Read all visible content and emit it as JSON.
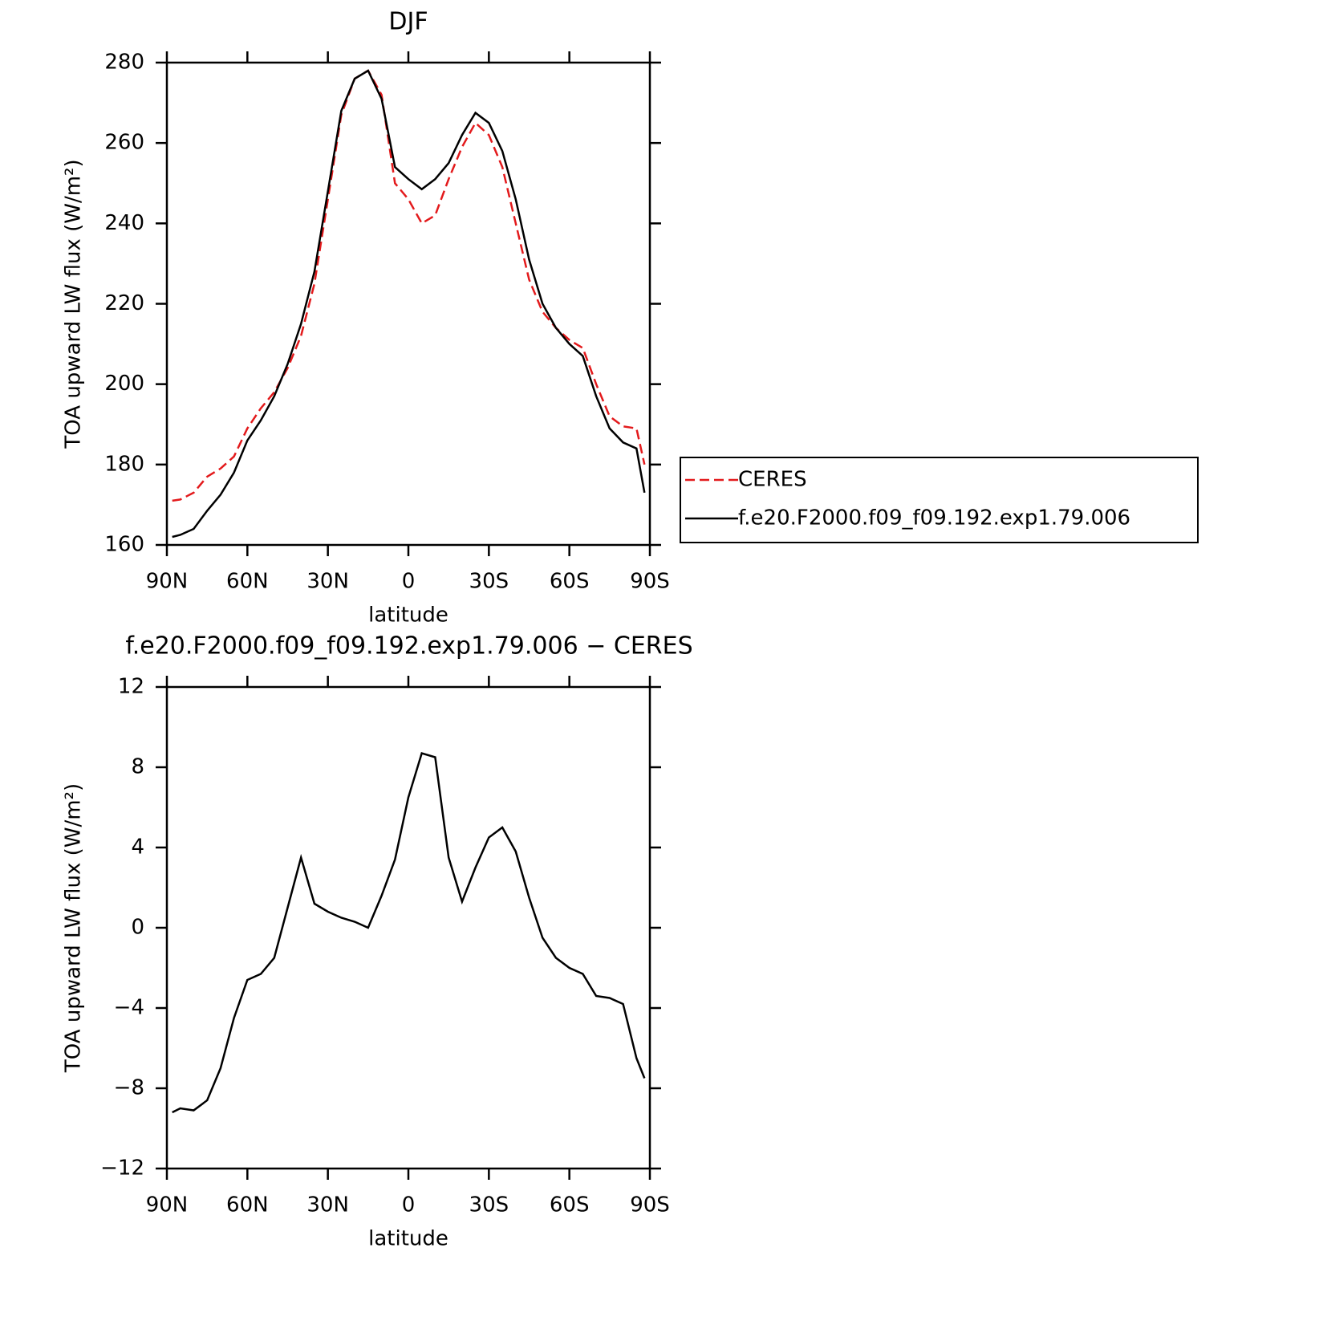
{
  "chart_data": [
    {
      "type": "line",
      "title": "DJF",
      "xlabel": "latitude",
      "ylabel": "TOA upward LW flux (W/m²)",
      "x": [
        88,
        85,
        80,
        75,
        70,
        65,
        60,
        55,
        50,
        45,
        40,
        35,
        30,
        25,
        20,
        15,
        10,
        5,
        0,
        -5,
        -10,
        -15,
        -20,
        -25,
        -30,
        -35,
        -40,
        -45,
        -50,
        -55,
        -60,
        -65,
        -70,
        -75,
        -80,
        -85,
        -88
      ],
      "series": [
        {
          "name": "CERES",
          "color": "#e31a1c",
          "dash": true,
          "values": [
            171,
            171.3,
            173,
            177,
            179,
            182,
            189,
            194,
            198,
            204,
            212,
            225,
            246,
            267,
            276,
            278,
            272,
            250,
            246,
            240,
            242,
            251,
            259,
            265,
            262,
            254,
            240,
            226,
            218,
            214,
            211,
            209,
            200,
            192,
            189.5,
            189,
            180
          ]
        },
        {
          "name": "f.e20.F2000.f09_f09.192.exp1.79.006",
          "color": "#000000",
          "dash": false,
          "values": [
            162,
            162.5,
            164,
            168.5,
            172.5,
            178,
            186,
            191,
            197,
            205,
            215,
            228,
            248,
            268,
            276,
            278,
            271,
            254,
            251,
            248.5,
            251,
            255,
            262,
            267.5,
            265,
            258,
            246,
            231,
            220,
            214,
            210,
            207,
            197,
            189,
            185.5,
            184,
            173
          ]
        }
      ],
      "xlim": [
        90,
        -90
      ],
      "xticks": [
        {
          "value": 90,
          "label": "90N"
        },
        {
          "value": 60,
          "label": "60N"
        },
        {
          "value": 30,
          "label": "30N"
        },
        0,
        {
          "value": -30,
          "label": "30S"
        },
        {
          "value": -60,
          "label": "60S"
        },
        {
          "value": -90,
          "label": "90S"
        }
      ],
      "ylim": [
        160,
        280
      ],
      "yticks": [
        160,
        180,
        200,
        220,
        240,
        260,
        280
      ],
      "legend": "right"
    },
    {
      "type": "line",
      "title": "f.e20.F2000.f09_f09.192.exp1.79.006 − CERES",
      "xlabel": "latitude",
      "ylabel": "TOA upward LW flux (W/m²)",
      "x": [
        88,
        85,
        80,
        75,
        70,
        65,
        60,
        55,
        50,
        45,
        40,
        35,
        30,
        25,
        20,
        15,
        10,
        5,
        0,
        -5,
        -10,
        -15,
        -20,
        -25,
        -30,
        -35,
        -40,
        -45,
        -50,
        -55,
        -60,
        -65,
        -70,
        -75,
        -80,
        -85,
        -88
      ],
      "series": [
        {
          "color": "#000000",
          "dash": false,
          "values": [
            -9.2,
            -9.0,
            -9.1,
            -8.6,
            -7.0,
            -4.5,
            -2.6,
            -2.3,
            -1.5,
            1.0,
            3.5,
            1.2,
            0.8,
            0.5,
            0.3,
            0.0,
            1.6,
            3.4,
            6.5,
            8.7,
            8.5,
            3.5,
            1.3,
            3.0,
            4.5,
            5.0,
            3.8,
            1.5,
            -0.5,
            -1.5,
            -2.0,
            -2.3,
            -3.4,
            -3.5,
            -3.8,
            -6.5,
            -7.5
          ]
        }
      ],
      "xlim": [
        90,
        -90
      ],
      "xticks": [
        {
          "value": 90,
          "label": "90N"
        },
        {
          "value": 60,
          "label": "60N"
        },
        {
          "value": 30,
          "label": "30N"
        },
        0,
        {
          "value": -30,
          "label": "30S"
        },
        {
          "value": -60,
          "label": "60S"
        },
        {
          "value": -90,
          "label": "90S"
        }
      ],
      "ylim": [
        -12,
        12
      ],
      "yticks": [
        {
          "value": -12,
          "label": "−12"
        },
        {
          "value": -8,
          "label": "−8"
        },
        {
          "value": -4,
          "label": "−4"
        },
        0,
        4,
        8,
        12
      ]
    }
  ]
}
